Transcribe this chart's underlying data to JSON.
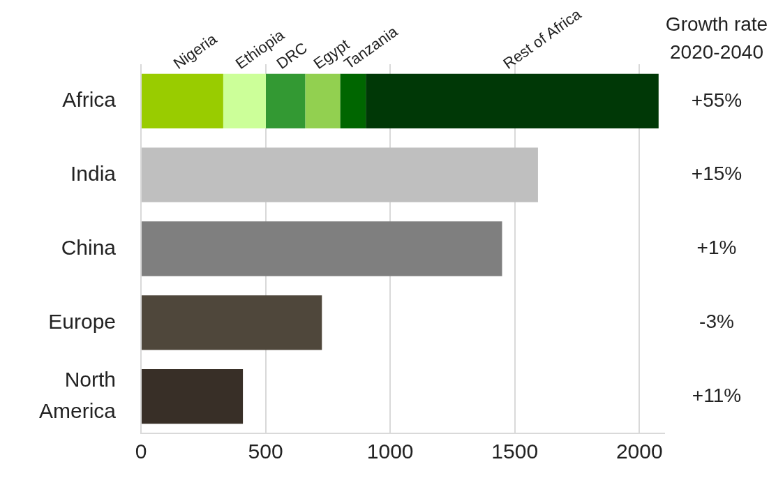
{
  "chart_data": {
    "type": "bar",
    "orientation": "horizontal",
    "stacked": true,
    "categories": [
      "Africa",
      "India",
      "China",
      "Europe",
      "North America"
    ],
    "series": [
      {
        "name": "Nigeria",
        "color": "#99cc00",
        "values": [
          330,
          null,
          null,
          null,
          null
        ]
      },
      {
        "name": "Ethiopia",
        "color": "#ccff99",
        "values": [
          171,
          null,
          null,
          null,
          null
        ]
      },
      {
        "name": "DRC",
        "color": "#339933",
        "values": [
          158,
          null,
          null,
          null,
          null
        ]
      },
      {
        "name": "Egypt",
        "color": "#92d050",
        "values": [
          140,
          null,
          null,
          null,
          null
        ]
      },
      {
        "name": "Tanzania",
        "color": "#006600",
        "values": [
          103,
          null,
          null,
          null,
          null
        ]
      },
      {
        "name": "Rest of Africa",
        "color": "#003806",
        "values": [
          1175,
          null,
          null,
          null,
          null
        ]
      },
      {
        "colors": [
          "#bfbfbf",
          "#bfbfbf",
          "#7f7f7f",
          "#4f473b",
          "#382f27"
        ],
        "values": [
          null,
          1593,
          1449,
          726,
          409
        ]
      }
    ],
    "xlim": [
      0,
      2100
    ],
    "xticks": [
      0,
      500,
      1000,
      1500,
      2000
    ],
    "grid": "x",
    "legend": false,
    "annotations": [
      "Growth rate 2020-2040",
      "+55%",
      "+15%",
      "+1%",
      "-3%",
      "+11%"
    ]
  }
}
